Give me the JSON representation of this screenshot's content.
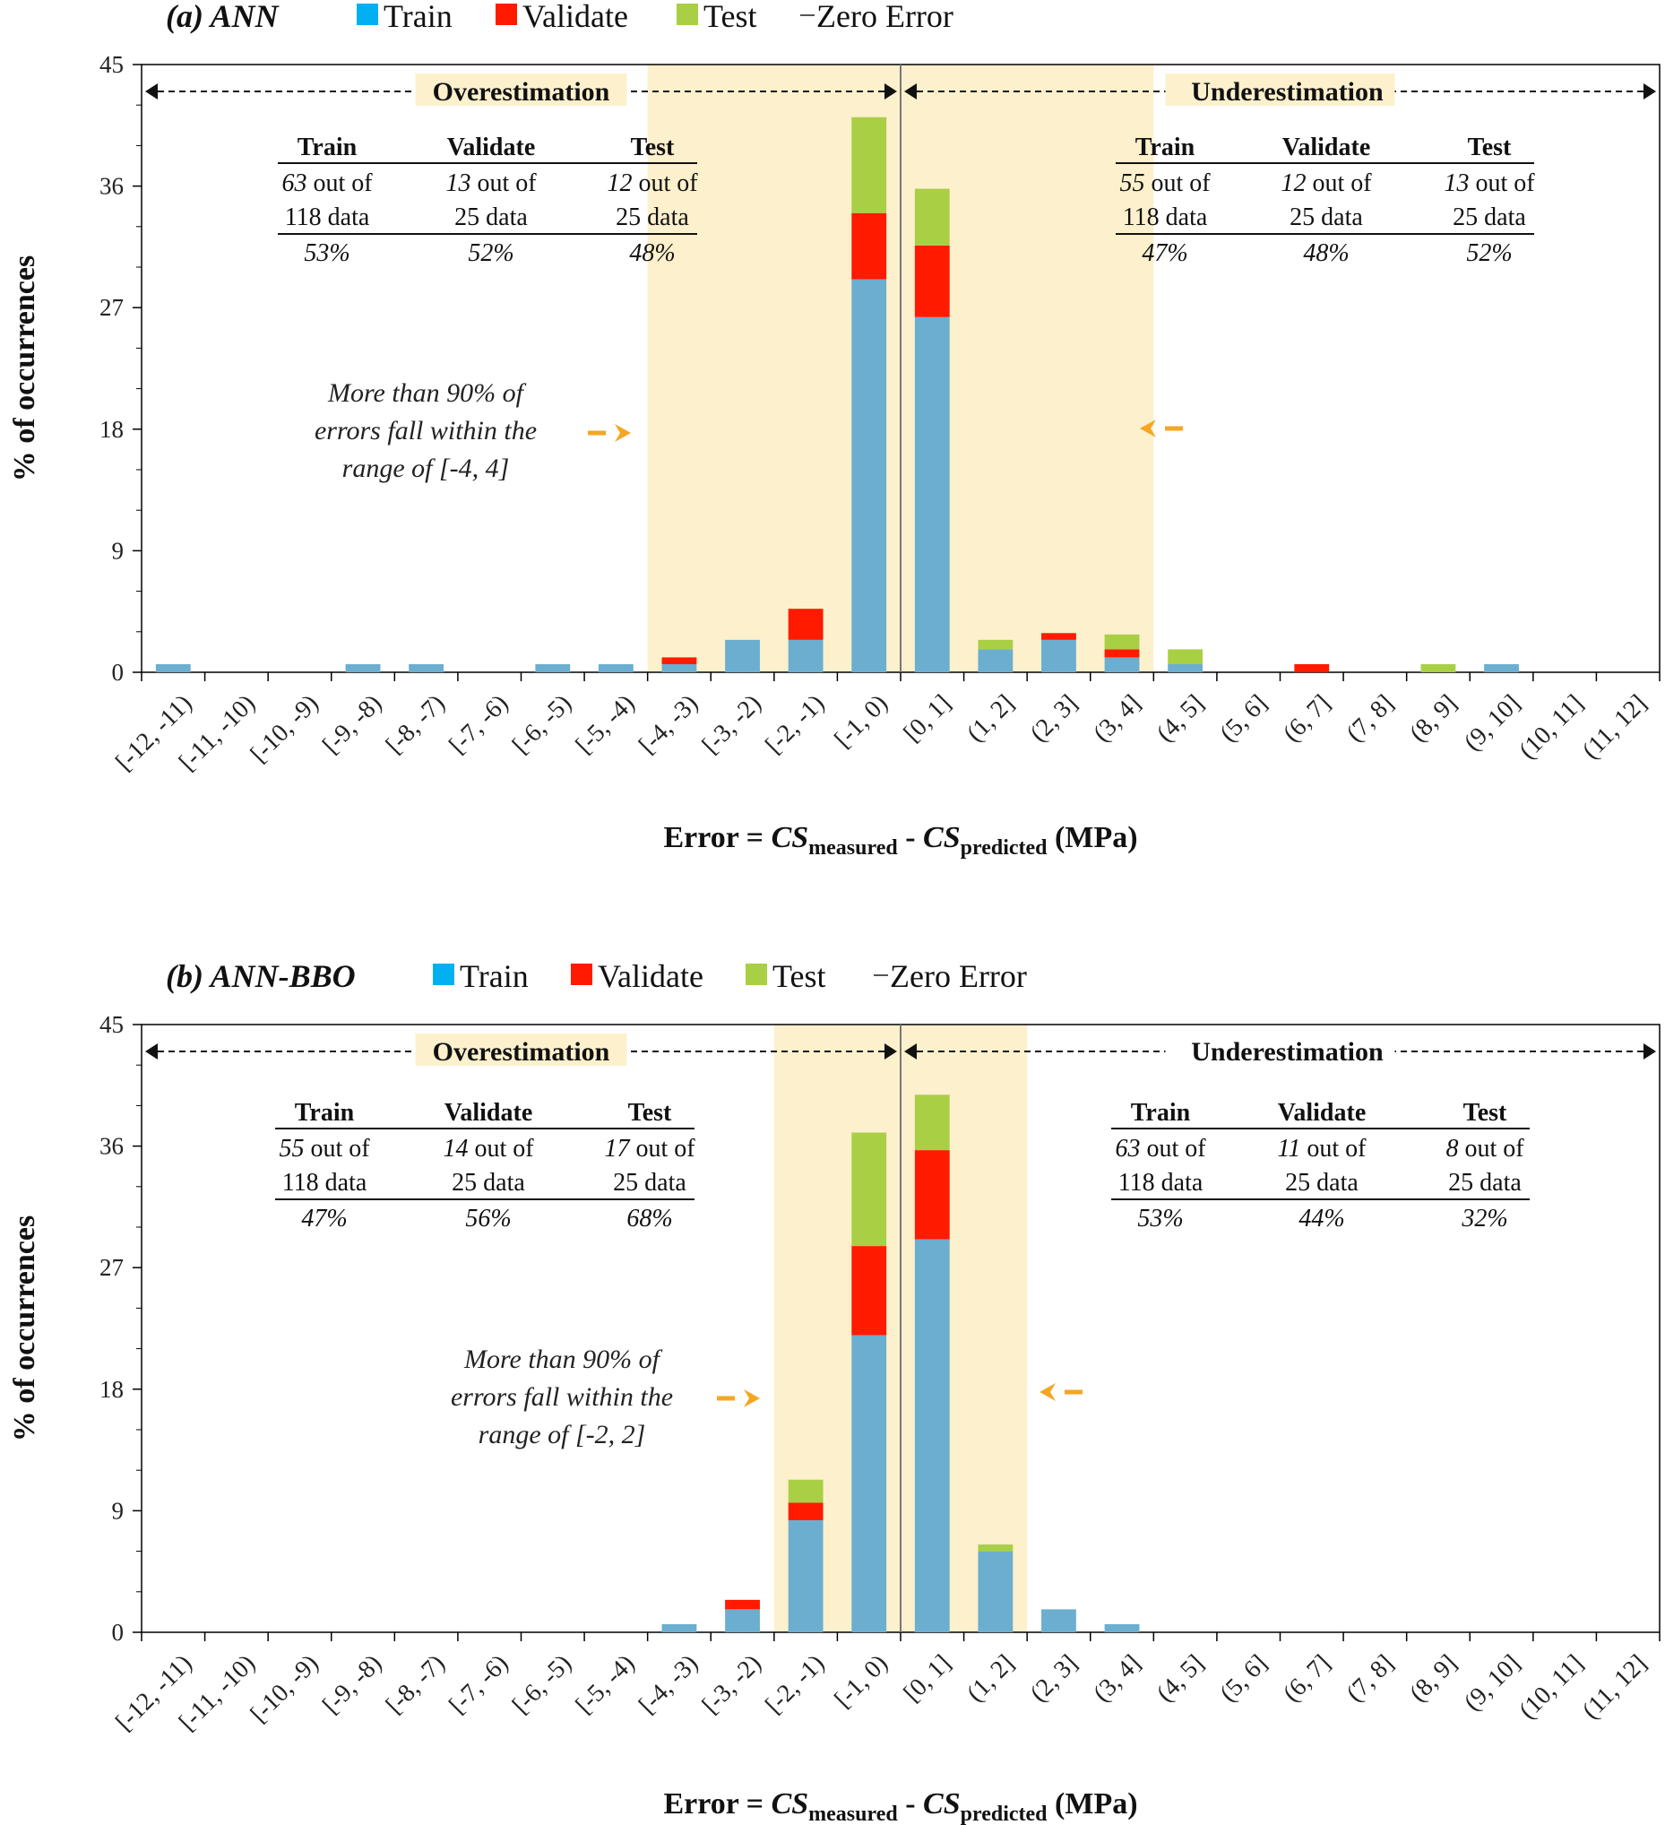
{
  "chart_data": [
    {
      "type": "bar",
      "stacked": true,
      "title": "(a) ANN",
      "legend": [
        "Train",
        "Validate",
        "Test",
        "Zero Error"
      ],
      "categories": [
        "[-12, -11)",
        "[-11, -10)",
        "[-10, -9)",
        "[-9, -8)",
        "[-8, -7)",
        "[-7, -6)",
        "[-6, -5)",
        "[-5, -4)",
        "[-4, -3)",
        "[-3, -2)",
        "[-2, -1)",
        "[-1, 0)",
        "[0, 1]",
        "(1, 2]",
        "(2, 3]",
        "(3, 4]",
        "(4, 5]",
        "(5, 6]",
        "(6, 7]",
        "(7, 8]",
        "(8, 9]",
        "(9, 10]",
        "(10, 11]",
        "(11, 12]"
      ],
      "series": [
        {
          "name": "Train",
          "color": "#6BAED0",
          "values": [
            0.6,
            0,
            0,
            0.6,
            0.6,
            0,
            0.6,
            0.6,
            0.6,
            2.4,
            2.4,
            29.1,
            26.3,
            1.7,
            2.4,
            1.1,
            0.6,
            0,
            0,
            0,
            0,
            0.6,
            0,
            0
          ]
        },
        {
          "name": "Validate",
          "color": "#FF1A00",
          "values": [
            0,
            0,
            0,
            0,
            0,
            0,
            0,
            0,
            0.5,
            0,
            2.3,
            4.9,
            5.3,
            0,
            0.5,
            0.6,
            0,
            0,
            0.6,
            0,
            0,
            0,
            0,
            0
          ]
        },
        {
          "name": "Test",
          "color": "#A9CF45",
          "values": [
            0,
            0,
            0,
            0,
            0,
            0,
            0,
            0,
            0,
            0,
            0,
            7.1,
            4.2,
            0.7,
            0,
            1.1,
            1.1,
            0,
            0,
            0,
            0.6,
            0,
            0,
            0
          ]
        }
      ],
      "ylim": [
        0,
        45
      ],
      "yticks": [
        "0",
        "9",
        "18",
        "27",
        "36",
        "45"
      ],
      "ylabel": "% of occurrences",
      "xlabel": {
        "pre": "Error = ",
        "cs1": "CS",
        "sub1": "measured",
        "mid": " - ",
        "cs2": "CS",
        "sub2": "predicted",
        "post": " (MPa)"
      },
      "shade_range": [
        "[-4, -3)",
        "(3, 4]"
      ],
      "over_label": "Overestimation",
      "under_label": "Underestimation",
      "note": [
        "More than 90% of",
        "errors fall within the",
        "range of [-4, 4]"
      ],
      "over_table": {
        "headers": [
          "Train",
          "Validate",
          "Test"
        ],
        "counts": [
          "63",
          "13",
          "12"
        ],
        "out_of": " out of",
        "totals": [
          "118 data",
          "25 data",
          "25 data"
        ],
        "percents": [
          "53%",
          "52%",
          "48%"
        ]
      },
      "under_table": {
        "headers": [
          "Train",
          "Validate",
          "Test"
        ],
        "counts": [
          "55",
          "12",
          "13"
        ],
        "out_of": " out of",
        "totals": [
          "118 data",
          "25 data",
          "25 data"
        ],
        "percents": [
          "47%",
          "48%",
          "52%"
        ]
      }
    },
    {
      "type": "bar",
      "stacked": true,
      "title": "(b) ANN-BBO",
      "legend": [
        "Train",
        "Validate",
        "Test",
        "Zero Error"
      ],
      "categories": [
        "[-12, -11)",
        "[-11, -10)",
        "[-10, -9)",
        "[-9, -8)",
        "[-8, -7)",
        "[-7, -6)",
        "[-6, -5)",
        "[-5, -4)",
        "[-4, -3)",
        "[-3, -2)",
        "[-2, -1)",
        "[-1, 0)",
        "[0, 1]",
        "(1, 2]",
        "(2, 3]",
        "(3, 4]",
        "(4, 5]",
        "(5, 6]",
        "(6, 7]",
        "(7, 8]",
        "(8, 9]",
        "(9, 10]",
        "(10, 11]",
        "(11, 12]"
      ],
      "series": [
        {
          "name": "Train",
          "color": "#6BAED0",
          "values": [
            0,
            0,
            0,
            0,
            0,
            0,
            0,
            0,
            0.6,
            1.7,
            8.3,
            22.0,
            29.1,
            6.0,
            1.7,
            0.6,
            0,
            0,
            0,
            0,
            0,
            0,
            0,
            0
          ]
        },
        {
          "name": "Validate",
          "color": "#FF1A00",
          "values": [
            0,
            0,
            0,
            0,
            0,
            0,
            0,
            0,
            0,
            0.7,
            1.3,
            6.6,
            6.6,
            0,
            0,
            0,
            0,
            0,
            0,
            0,
            0,
            0,
            0,
            0
          ]
        },
        {
          "name": "Test",
          "color": "#A9CF45",
          "values": [
            0,
            0,
            0,
            0,
            0,
            0,
            0,
            0,
            0,
            0,
            1.7,
            8.4,
            4.1,
            0.5,
            0,
            0,
            0,
            0,
            0,
            0,
            0,
            0,
            0,
            0
          ]
        }
      ],
      "ylim": [
        0,
        45
      ],
      "yticks": [
        "0",
        "9",
        "18",
        "27",
        "36",
        "45"
      ],
      "ylabel": "% of occurrences",
      "xlabel": {
        "pre": "Error = ",
        "cs1": "CS",
        "sub1": "measured",
        "mid": " - ",
        "cs2": "CS",
        "sub2": "predicted",
        "post": " (MPa)"
      },
      "shade_range": [
        "[-2, -1)",
        "(1, 2]"
      ],
      "over_label": "Overestimation",
      "under_label": "Underestimation",
      "note": [
        "More than 90% of",
        "errors fall within the",
        "range of [-2, 2]"
      ],
      "over_table": {
        "headers": [
          "Train",
          "Validate",
          "Test"
        ],
        "counts": [
          "55",
          "14",
          "17"
        ],
        "out_of": " out of",
        "totals": [
          "118 data",
          "25 data",
          "25 data"
        ],
        "percents": [
          "47%",
          "56%",
          "68%"
        ]
      },
      "under_table": {
        "headers": [
          "Train",
          "Validate",
          "Test"
        ],
        "counts": [
          "63",
          "11",
          "8"
        ],
        "out_of": " out of",
        "totals": [
          "118 data",
          "25 data",
          "25 data"
        ],
        "percents": [
          "53%",
          "44%",
          "32%"
        ]
      }
    }
  ],
  "colors": {
    "train": "#6BAED0",
    "train_legend": "#00B0F0",
    "validate": "#FF1A00",
    "test": "#A9CF45",
    "shade": "#FDF0CC",
    "arrow_orange": "#F5A623"
  }
}
